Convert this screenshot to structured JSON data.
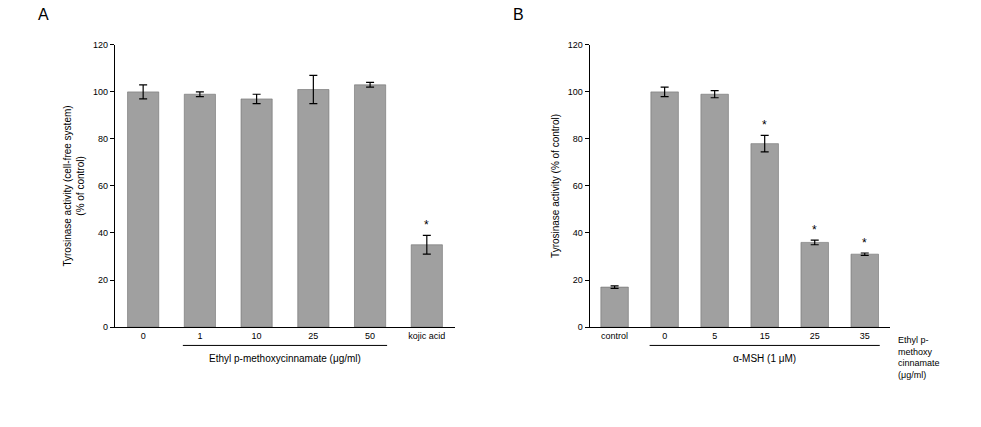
{
  "chart_data": [
    {
      "type": "bar",
      "title": "A",
      "categories": [
        "0",
        "1",
        "10",
        "25",
        "50",
        "kojic acid"
      ],
      "values": [
        100,
        99,
        97,
        101,
        103,
        35
      ],
      "errors": [
        3,
        1,
        2,
        6,
        1,
        4
      ],
      "color": "#a0a0a0",
      "ylim": [
        0,
        120
      ],
      "yticks": [
        0,
        20,
        40,
        60,
        80,
        100,
        120
      ],
      "ylabel": [
        "Tyrosinase activity (cell-free system)",
        "(% of control)"
      ],
      "group_label": {
        "text": "Ethyl p-methoxycinnamate (μg/ml)",
        "from": "1",
        "to": "50"
      },
      "annotations": [
        {
          "category": "kojic acid",
          "text": "*"
        }
      ],
      "grid": false
    },
    {
      "type": "bar",
      "title": "B",
      "categories": [
        "control",
        "0",
        "5",
        "15",
        "25",
        "35"
      ],
      "values": [
        17,
        100,
        99,
        78,
        36,
        31
      ],
      "errors": [
        0.5,
        2,
        1.5,
        3.5,
        1,
        0.5
      ],
      "color": "#a0a0a0",
      "ylim": [
        0,
        120
      ],
      "yticks": [
        0,
        20,
        40,
        60,
        80,
        100,
        120
      ],
      "ylabel": [
        "Tyrosinase activity (% of control)"
      ],
      "group_label": {
        "text": "α-MSH (1 μM)",
        "from": "0",
        "to": "35"
      },
      "side_label": [
        "Ethyl p-",
        "methoxy",
        "cinnamate",
        "(μg/ml)"
      ],
      "annotations": [
        {
          "category": "15",
          "text": "*"
        },
        {
          "category": "25",
          "text": "*"
        },
        {
          "category": "35",
          "text": "*"
        }
      ],
      "grid": false
    }
  ]
}
